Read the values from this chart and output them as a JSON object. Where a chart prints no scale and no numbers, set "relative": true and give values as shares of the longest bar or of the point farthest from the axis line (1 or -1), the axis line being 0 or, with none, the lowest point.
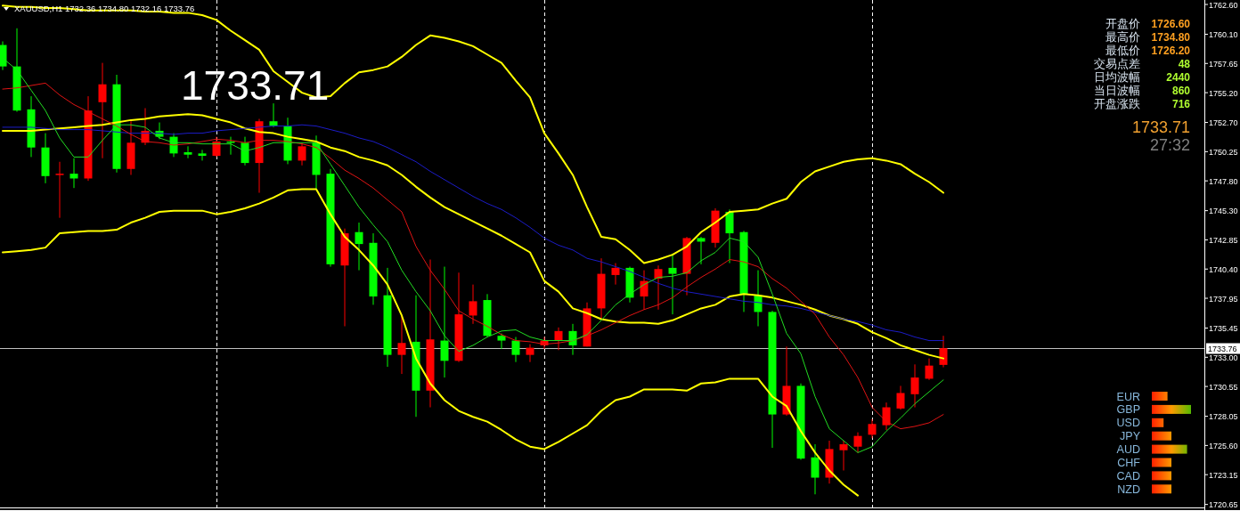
{
  "chart_data": [
    {
      "type": "candlestick",
      "title": "XAUUSD,H1  1732.36 1734.80 1732.16 1733.76",
      "categories": [
        null,
        null,
        null,
        null,
        null,
        null,
        null,
        null,
        null,
        null,
        null,
        null,
        null,
        null,
        null,
        null,
        null,
        null,
        null,
        null,
        null,
        null,
        null,
        null,
        null,
        null,
        null,
        null,
        null,
        null,
        null,
        null,
        null,
        null,
        null,
        null,
        null,
        null,
        null,
        null,
        null,
        null,
        null,
        null,
        null,
        null,
        null,
        null,
        null,
        null,
        null,
        null,
        null,
        null,
        null,
        null,
        null,
        null,
        null,
        null,
        null,
        null,
        null,
        null,
        null,
        null,
        null
      ],
      "ohlc": [
        [
          1759.2,
          1759.5,
          1757.1,
          1757.4
        ],
        [
          1757.4,
          1760.6,
          1753.6,
          1753.7
        ],
        [
          1753.8,
          1754.9,
          1749.8,
          1750.6
        ],
        [
          1750.6,
          1751.8,
          1747.6,
          1748.2
        ],
        [
          1748.3,
          1749.4,
          1744.7,
          1748.4
        ],
        [
          1748.4,
          1749.7,
          1747.2,
          1748.0
        ],
        [
          1748.0,
          1754.9,
          1747.8,
          1753.7
        ],
        [
          1754.4,
          1757.7,
          1749.7,
          1755.9
        ],
        [
          1755.9,
          1756.7,
          1748.5,
          1748.8
        ],
        [
          1748.8,
          1752.8,
          1748.3,
          1751.0
        ],
        [
          1751.0,
          1753.9,
          1750.8,
          1752.0
        ],
        [
          1752.0,
          1752.7,
          1751.3,
          1751.5
        ],
        [
          1751.5,
          1751.8,
          1749.8,
          1750.1
        ],
        [
          1750.2,
          1750.7,
          1749.7,
          1750.0
        ],
        [
          1750.1,
          1750.4,
          1749.5,
          1749.9
        ],
        [
          1749.9,
          1751.5,
          1749.8,
          1751.1
        ],
        [
          1751.1,
          1751.5,
          1750.0,
          1751.0
        ],
        [
          1751.0,
          1751.5,
          1749.1,
          1749.3
        ],
        [
          1749.3,
          1753.0,
          1746.8,
          1752.8
        ],
        [
          1752.8,
          1754.3,
          1752.3,
          1752.4
        ],
        [
          1752.4,
          1753.1,
          1749.2,
          1749.5
        ],
        [
          1749.5,
          1751.0,
          1749.1,
          1750.7
        ],
        [
          1751.0,
          1751.6,
          1747.1,
          1748.3
        ],
        [
          1748.4,
          1748.8,
          1740.6,
          1740.8
        ],
        [
          1740.7,
          1743.8,
          1735.6,
          1743.4
        ],
        [
          1743.5,
          1744.3,
          1740.3,
          1742.5
        ],
        [
          1742.6,
          1743.4,
          1737.4,
          1738.1
        ],
        [
          1738.2,
          1740.5,
          1732.2,
          1733.2
        ],
        [
          1733.2,
          1736.5,
          1731.6,
          1734.2
        ],
        [
          1734.3,
          1738.2,
          1728.0,
          1730.2
        ],
        [
          1730.2,
          1741.2,
          1728.8,
          1734.5
        ],
        [
          1734.4,
          1740.6,
          1731.3,
          1732.7
        ],
        [
          1732.7,
          1740.1,
          1732.6,
          1736.6
        ],
        [
          1736.5,
          1739.1,
          1735.8,
          1737.7
        ],
        [
          1737.8,
          1738.3,
          1734.7,
          1734.8
        ],
        [
          1734.8,
          1735.0,
          1733.7,
          1734.4
        ],
        [
          1734.4,
          1734.7,
          1732.6,
          1733.2
        ],
        [
          1733.2,
          1734.1,
          1732.6,
          1733.8
        ],
        [
          1734.0,
          1734.7,
          1733.7,
          1734.4
        ],
        [
          1734.4,
          1735.5,
          1733.6,
          1735.2
        ],
        [
          1735.2,
          1735.8,
          1733.2,
          1734.0
        ],
        [
          1733.9,
          1737.6,
          1733.9,
          1737.1
        ],
        [
          1737.1,
          1741.3,
          1736.2,
          1740.0
        ],
        [
          1739.9,
          1740.9,
          1739.1,
          1740.5
        ],
        [
          1740.5,
          1740.6,
          1737.6,
          1738.0
        ],
        [
          1738.1,
          1740.3,
          1737.0,
          1739.4
        ],
        [
          1739.6,
          1740.7,
          1737.0,
          1740.4
        ],
        [
          1740.5,
          1741.7,
          1736.6,
          1740.0
        ],
        [
          1740.0,
          1743.1,
          1738.2,
          1743.0
        ],
        [
          1743.0,
          1743.1,
          1740.8,
          1742.7
        ],
        [
          1742.6,
          1745.5,
          1742.2,
          1745.3
        ],
        [
          1745.2,
          1745.4,
          1740.9,
          1743.4
        ],
        [
          1743.5,
          1743.6,
          1736.8,
          1738.3
        ],
        [
          1738.2,
          1740.3,
          1735.6,
          1736.8
        ],
        [
          1736.8,
          1736.9,
          1725.4,
          1728.2
        ],
        [
          1728.2,
          1733.9,
          1728.1,
          1730.6
        ],
        [
          1730.6,
          1730.8,
          1724.4,
          1724.5
        ],
        [
          1724.6,
          1725.7,
          1721.5,
          1722.9
        ],
        [
          1722.9,
          1726.0,
          1722.4,
          1725.3
        ],
        [
          1725.2,
          1726.0,
          1723.5,
          1725.7
        ],
        [
          1725.5,
          1726.7,
          1725.0,
          1726.4
        ],
        [
          1726.5,
          1727.8,
          1726.2,
          1727.4
        ],
        [
          1727.3,
          1729.2,
          1726.9,
          1728.8
        ],
        [
          1728.7,
          1730.6,
          1728.6,
          1730.0
        ],
        [
          1729.9,
          1732.4,
          1728.8,
          1731.3
        ],
        [
          1731.2,
          1732.9,
          1731.1,
          1732.3
        ],
        [
          1732.36,
          1734.8,
          1732.16,
          1733.76
        ]
      ],
      "series": [
        {
          "type": "line",
          "color": "#ffff00",
          "values": [
            1762.5,
            1762.4,
            1762.4,
            1762.3,
            1762.3,
            1762.2,
            1762.1,
            1762.1,
            1762.1,
            1762.1,
            1762.0,
            1762.0,
            1761.9,
            1761.9,
            1761.7,
            1761.3,
            1760.4,
            1759.6,
            1758.8,
            1757.0,
            1756.1,
            1755.2,
            1754.8,
            1754.9,
            1756.0,
            1756.9,
            1757.1,
            1757.4,
            1758.2,
            1759.2,
            1760.0,
            1759.8,
            1759.5,
            1759.1,
            1758.4,
            1757.7,
            1756.2,
            1754.8,
            1751.8,
            1750.1,
            1748.3,
            1745.6,
            1743.1,
            1742.9,
            1742.0,
            1740.9,
            1741.2,
            1741.6,
            1742.3,
            1743.5,
            1744.3,
            1745.2,
            1745.3,
            1745.4,
            1745.9,
            1746.3,
            1747.7,
            1748.6,
            1749.0,
            1749.4,
            1749.6,
            1749.7,
            1749.5,
            1749.2,
            1748.4,
            1747.7,
            1746.8
          ]
        },
        {
          "type": "line",
          "color": "#ffff00",
          "values": [
            1752.0,
            1752.0,
            1752.0,
            1752.1,
            1752.2,
            1752.3,
            1752.4,
            1752.5,
            1752.7,
            1752.9,
            1753.0,
            1753.2,
            1753.3,
            1753.4,
            1753.3,
            1753.0,
            1752.7,
            1752.2,
            1751.9,
            1751.8,
            1751.5,
            1751.3,
            1751.1,
            1750.6,
            1750.3,
            1749.8,
            1749.5,
            1749.1,
            1748.3,
            1747.3,
            1746.4,
            1745.6,
            1745.0,
            1744.4,
            1743.8,
            1743.2,
            1742.5,
            1741.8,
            1739.4,
            1738.5,
            1737.1,
            1736.7,
            1736.2,
            1736.0,
            1735.9,
            1735.9,
            1735.8,
            1736.1,
            1736.6,
            1737.1,
            1737.4,
            1738.1,
            1738.3,
            1738.2,
            1738.0,
            1737.7,
            1737.4,
            1737.0,
            1736.5,
            1736.2,
            1735.8,
            1735.1,
            1734.6,
            1734.0,
            1733.6,
            1733.2,
            1732.9
          ]
        },
        {
          "type": "line",
          "color": "#ffff00",
          "values": [
            1741.8,
            1741.9,
            1742.0,
            1742.2,
            1743.4,
            1743.5,
            1743.6,
            1743.6,
            1743.7,
            1744.3,
            1744.7,
            1745.2,
            1745.3,
            1745.3,
            1745.3,
            1745.0,
            1745.2,
            1745.5,
            1745.9,
            1746.4,
            1747.0,
            1747.1,
            1747.1,
            1745.0,
            1743.1,
            1742.0,
            1740.7,
            1739.1,
            1736.5,
            1732.9,
            1730.8,
            1729.4,
            1728.5,
            1728.0,
            1727.6,
            1726.9,
            1726.1,
            1725.5,
            1725.3,
            1725.9,
            1726.6,
            1727.3,
            1728.5,
            1729.4,
            1729.7,
            1730.3,
            1730.3,
            1730.3,
            1730.2,
            1730.8,
            1730.9,
            1731.2,
            1731.2,
            1731.2,
            1729.7,
            1728.9,
            1726.8,
            1725.0,
            1723.5,
            1722.3,
            1721.4,
            null,
            null,
            null,
            null,
            null,
            null
          ]
        },
        {
          "type": "line",
          "color": "#1c1cc8",
          "values": [
            1752.3,
            1752.3,
            1752.3,
            1752.2,
            1752.1,
            1752.1,
            1752.1,
            1752.0,
            1751.9,
            1751.8,
            1751.8,
            1751.8,
            1751.7,
            1751.8,
            1751.8,
            1752.0,
            1752.1,
            1752.2,
            1752.3,
            1752.4,
            1752.4,
            1752.5,
            1752.4,
            1752.1,
            1751.8,
            1751.4,
            1751.1,
            1750.6,
            1750.0,
            1749.4,
            1748.6,
            1747.9,
            1747.2,
            1746.5,
            1745.9,
            1745.4,
            1744.7,
            1743.9,
            1743.0,
            1742.4,
            1742.0,
            1741.3,
            1741.0,
            1740.6,
            1740.2,
            1739.7,
            1739.2,
            1738.8,
            1738.5,
            1738.3,
            1738.1,
            1737.9,
            1737.7,
            1737.6,
            1737.4,
            1737.3,
            1737.1,
            1736.8,
            1736.5,
            1736.2,
            1736.0,
            1735.7,
            1735.3,
            1735.1,
            1734.7,
            1734.4,
            1734.4
          ]
        },
        {
          "type": "line",
          "color": "#e01414",
          "values": [
            1755.5,
            1755.6,
            1755.8,
            1756.0,
            1755.0,
            1754.2,
            1753.6,
            1753.0,
            1752.4,
            1751.7,
            1751.1,
            1751.0,
            1750.8,
            1750.9,
            1751.1,
            1751.3,
            1751.2,
            1751.0,
            1751.2,
            1751.2,
            1751.1,
            1750.9,
            1750.6,
            1749.7,
            1748.7,
            1748.0,
            1747.2,
            1746.2,
            1745.2,
            1742.3,
            1740.3,
            1738.7,
            1736.9,
            1736.2,
            1735.6,
            1734.9,
            1734.4,
            1734.3,
            1734.1,
            1734.2,
            1734.4,
            1734.8,
            1735.3,
            1735.9,
            1736.5,
            1737.0,
            1737.4,
            1738.0,
            1738.9,
            1739.7,
            1740.4,
            1741.2,
            1741.0,
            1740.6,
            1739.6,
            1738.8,
            1737.7,
            1736.6,
            1734.7,
            1733.2,
            1731.3,
            1728.8,
            1727.6,
            1727.0,
            1727.2,
            1727.5,
            1728.2
          ]
        },
        {
          "type": "line",
          "color": "#22dd22",
          "values": [
            1758.1,
            1757.1,
            1755.4,
            1753.7,
            1751.4,
            1749.8,
            1749.8,
            1751.2,
            1752.5,
            1752.5,
            1752.3,
            1751.4,
            1751.0,
            1751.0,
            1750.9,
            1750.9,
            1750.9,
            1750.3,
            1750.6,
            1751.0,
            1751.0,
            1751.0,
            1751.0,
            1749.2,
            1747.4,
            1745.6,
            1744.1,
            1742.7,
            1740.3,
            1738.5,
            1736.9,
            1734.8,
            1733.5,
            1734.0,
            1734.7,
            1735.2,
            1735.3,
            1734.7,
            1734.4,
            1734.4,
            1734.4,
            1734.9,
            1736.1,
            1737.4,
            1738.3,
            1739.1,
            1739.7,
            1739.8,
            1740.1,
            1741.1,
            1741.8,
            1743.0,
            1742.7,
            1741.4,
            1738.3,
            1735.0,
            1733.3,
            1729.7,
            1727.0,
            1726.0,
            1725.0,
            1725.5,
            1726.8,
            1727.9,
            1729.1,
            1730.1,
            1731.1
          ]
        }
      ],
      "ylim": [
        1720.4,
        1762.75
      ],
      "yticks": [
        {
          "value": 1720.65,
          "label": "1720.65"
        },
        {
          "value": 1723.15,
          "label": "1723.15"
        },
        {
          "value": 1725.6,
          "label": "1725.60"
        },
        {
          "value": 1728.05,
          "label": "1728.05"
        },
        {
          "value": 1730.55,
          "label": "1730.55"
        },
        {
          "value": 1733.0,
          "label": "1733.00"
        },
        {
          "value": 1735.45,
          "label": "1735.45"
        },
        {
          "value": 1737.95,
          "label": "1737.95"
        },
        {
          "value": 1740.4,
          "label": "1740.40"
        },
        {
          "value": 1742.85,
          "label": "1742.85"
        },
        {
          "value": 1745.3,
          "label": "1745.30"
        },
        {
          "value": 1747.8,
          "label": "1747.80"
        },
        {
          "value": 1750.25,
          "label": "1750.25"
        },
        {
          "value": 1752.7,
          "label": "1752.70"
        },
        {
          "value": 1755.2,
          "label": "1755.20"
        },
        {
          "value": 1757.65,
          "label": "1757.65"
        },
        {
          "value": 1760.1,
          "label": "1760.10"
        },
        {
          "value": 1762.6,
          "label": "1762.60"
        }
      ],
      "tick_labels": "y",
      "ref_lines": [
        {
          "axis": "y",
          "value": 1733.76,
          "label": "1733.76",
          "color": "#c0c0c0"
        }
      ],
      "grid": "x",
      "annotations": [
        "1733.71"
      ]
    },
    {
      "type": "other",
      "annotations": [
        "开盘价",
        "1726.60",
        "最高价",
        "1734.80",
        "最低价",
        "1726.20",
        "交易点差",
        "48",
        "日均波幅",
        "2440",
        "当日波幅",
        "860",
        "开盘涨跌",
        "716",
        "1733.71",
        "27:32"
      ]
    },
    {
      "type": "bar",
      "orientation": "horizontal",
      "relative": true,
      "categories": [
        "EUR",
        "GBP",
        "USD",
        "JPY",
        "AUD",
        "CHF",
        "CAD",
        "NZD"
      ],
      "values": [
        0.4,
        1,
        0.3,
        0.5,
        0.9,
        0.5,
        0.5,
        0.5
      ]
    }
  ]
}
